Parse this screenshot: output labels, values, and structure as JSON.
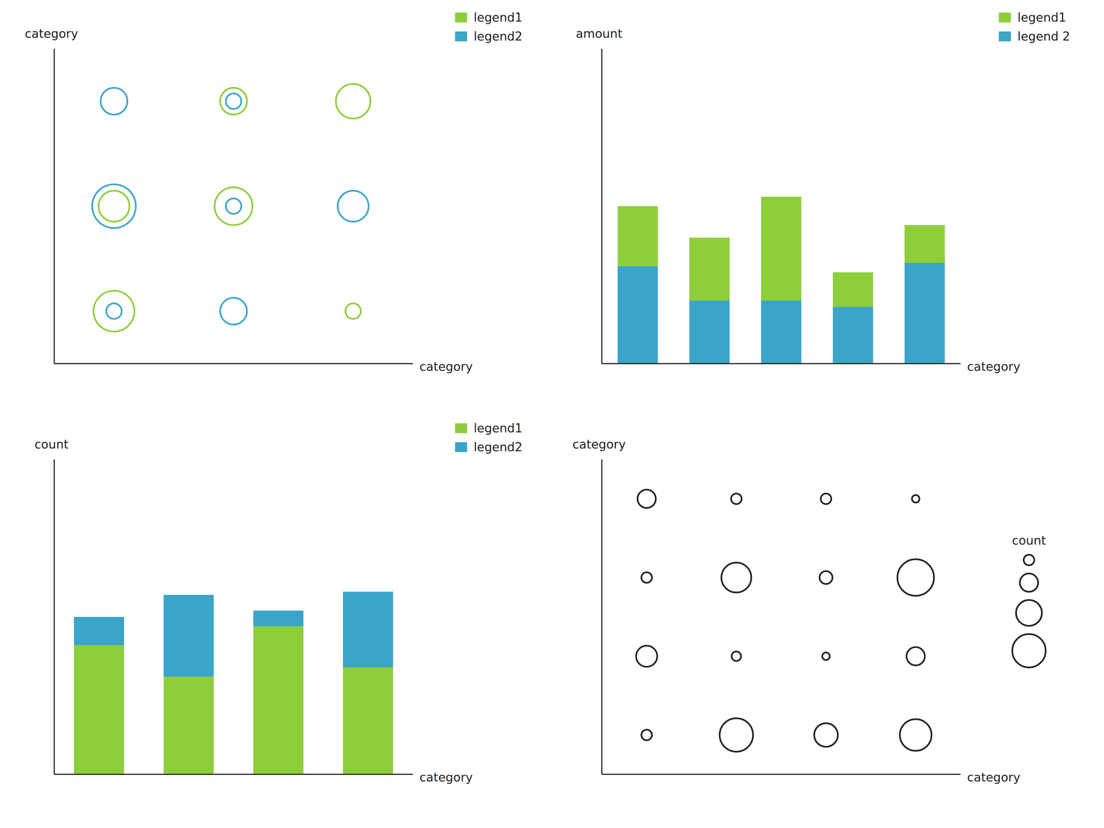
{
  "chart_data": [
    {
      "type": "scatter",
      "x_label": "category",
      "y_label": "category",
      "categories": [
        null,
        null,
        null
      ],
      "y_categories": [
        null,
        null,
        null
      ],
      "size_lim": [
        0,
        10
      ],
      "legend": "upper right",
      "tick_labels": false,
      "grid": false,
      "marker": "circle",
      "series": [
        {
          "name": "legend1",
          "color": "#8dce3a",
          "x": [
            1,
            2,
            0,
            1,
            0,
            2
          ],
          "y": [
            2,
            2,
            1,
            1,
            0,
            0
          ],
          "size": [
            3,
            5,
            4,
            6,
            7,
            1
          ]
        },
        {
          "name": "legend2",
          "color": "#3aa5c8",
          "x": [
            0,
            1,
            0,
            1,
            2,
            0,
            1
          ],
          "y": [
            2,
            2,
            1,
            1,
            1,
            0,
            0
          ],
          "size": [
            3,
            1,
            8,
            1,
            4,
            1,
            3
          ]
        }
      ]
    },
    {
      "type": "bar",
      "stacked": true,
      "x_label": "category",
      "y_label": "amount",
      "categories": [
        null,
        null,
        null,
        null,
        null
      ],
      "ylim": [
        0,
        100
      ],
      "legend": "upper right",
      "tick_labels": false,
      "grid": false,
      "series": [
        {
          "name": "legend1",
          "color": "#8dce3a",
          "values": [
            19,
            20,
            33,
            11,
            12
          ]
        },
        {
          "name": "legend 2",
          "color": "#3aa5c8",
          "values": [
            31,
            20,
            20,
            18,
            32
          ]
        }
      ]
    },
    {
      "type": "bar",
      "stacked": true,
      "x_label": "category",
      "y_label": "count",
      "categories": [
        null,
        null,
        null,
        null
      ],
      "ylim": [
        0,
        100
      ],
      "legend": "upper right",
      "tick_labels": false,
      "grid": false,
      "series": [
        {
          "name": "legend1",
          "color": "#8dce3a",
          "values": [
            41,
            31,
            47,
            34
          ]
        },
        {
          "name": "legend2",
          "color": "#3aa5c8",
          "values": [
            9,
            26,
            5,
            24
          ]
        }
      ]
    },
    {
      "type": "scatter",
      "x_label": "category",
      "y_label": "category",
      "categories": [
        null,
        null,
        null,
        null
      ],
      "y_categories": [
        null,
        null,
        null,
        null
      ],
      "size_lim": [
        0,
        12
      ],
      "size_legend": {
        "title": "count",
        "values": [
          1,
          3,
          6,
          10
        ]
      },
      "tick_labels": false,
      "grid": false,
      "marker": "circle",
      "series": [
        {
          "color": "#222222",
          "x": [
            0,
            1,
            2,
            3,
            0,
            1,
            2,
            3,
            0,
            1,
            2,
            3,
            0,
            1,
            2,
            3
          ],
          "y": [
            3,
            3,
            3,
            3,
            2,
            2,
            2,
            2,
            1,
            1,
            1,
            1,
            0,
            0,
            0,
            0
          ],
          "size": [
            3,
            1,
            1,
            0.5,
            1,
            8,
            1.5,
            12,
            4,
            0.8,
            0.5,
            3,
            1,
            10,
            5,
            9
          ]
        }
      ]
    }
  ]
}
